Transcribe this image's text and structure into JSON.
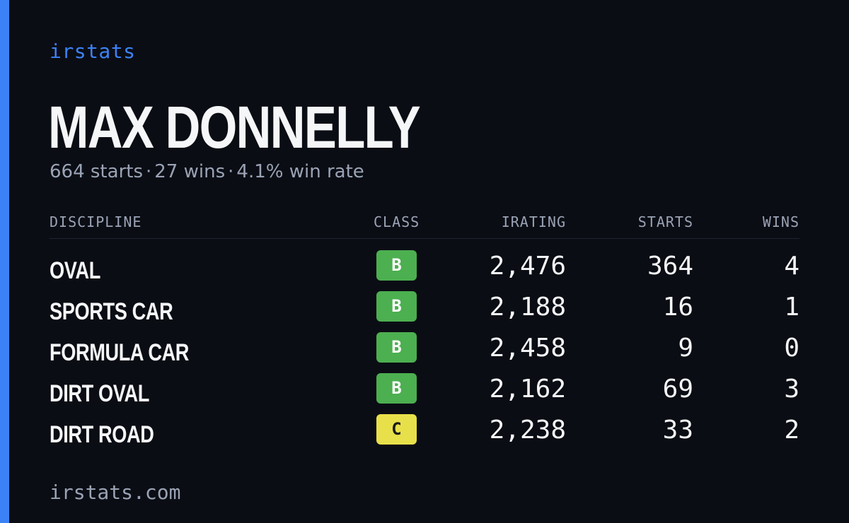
{
  "brand": "irstats",
  "player": {
    "name": "MAX DONNELLY",
    "starts_text": "664 starts",
    "wins_text": "27 wins",
    "win_rate_text": "4.1% win rate",
    "separator": "·"
  },
  "table": {
    "headers": {
      "discipline": "DISCIPLINE",
      "class": "CLASS",
      "irating": "IRATING",
      "starts": "STARTS",
      "wins": "WINS"
    },
    "rows": [
      {
        "discipline": "OVAL",
        "class": "B",
        "irating": "2,476",
        "starts": "364",
        "wins": "4"
      },
      {
        "discipline": "SPORTS CAR",
        "class": "B",
        "irating": "2,188",
        "starts": "16",
        "wins": "1"
      },
      {
        "discipline": "FORMULA CAR",
        "class": "B",
        "irating": "2,458",
        "starts": "9",
        "wins": "0"
      },
      {
        "discipline": "DIRT OVAL",
        "class": "B",
        "irating": "2,162",
        "starts": "69",
        "wins": "3"
      },
      {
        "discipline": "DIRT ROAD",
        "class": "C",
        "irating": "2,238",
        "starts": "33",
        "wins": "2"
      }
    ]
  },
  "footer": {
    "url": "irstats.com"
  },
  "colors": {
    "accent": "#3b82f6",
    "background": "#0b0d14",
    "class_b": "#4caf50",
    "class_c": "#e8e04a"
  }
}
